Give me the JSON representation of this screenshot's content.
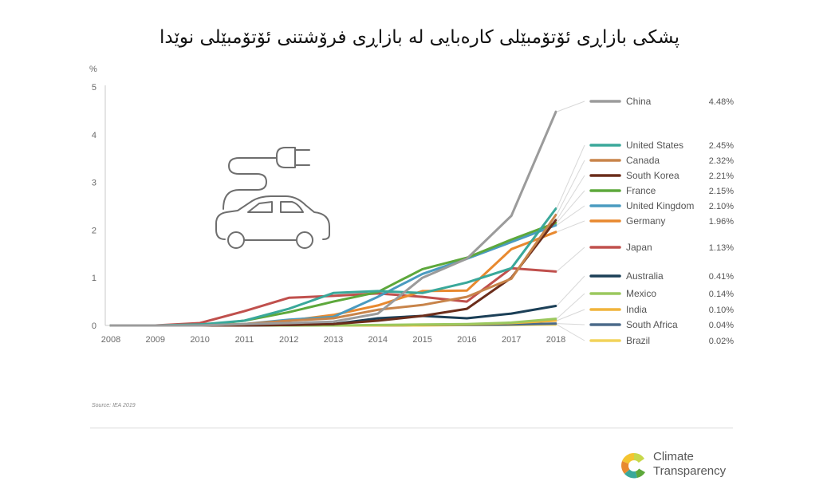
{
  "title": "پشکی بازاڕی ئۆتۆمبێلی کارەبایی لە بازاڕی فرۆشتنی ئۆتۆمبێلی نوێدا",
  "source": "Source: IEA 2019",
  "brand": {
    "line1": "Climate",
    "line2": "Transparency"
  },
  "chart_data": {
    "type": "line",
    "ylabel": "%",
    "ylim": [
      0,
      5
    ],
    "yticks": [
      "0",
      "1",
      "2",
      "3",
      "4",
      "5"
    ],
    "x": [
      "2008",
      "2009",
      "2010",
      "2011",
      "2012",
      "2013",
      "2014",
      "2015",
      "2016",
      "2017",
      "2018"
    ],
    "grid": false,
    "legend": "right",
    "series": [
      {
        "name": "China",
        "label": "4.48%",
        "color": "#9b9b9b",
        "values": [
          0,
          0,
          0,
          0.03,
          0.05,
          0.08,
          0.25,
          1.0,
          1.4,
          2.3,
          4.48
        ]
      },
      {
        "name": "United States",
        "label": "2.45%",
        "color": "#3aa89a",
        "values": [
          0,
          0,
          0.02,
          0.1,
          0.35,
          0.68,
          0.72,
          0.68,
          0.9,
          1.2,
          2.45
        ]
      },
      {
        "name": "Canada",
        "label": "2.32%",
        "color": "#c8844a",
        "values": [
          0,
          0,
          0,
          0.03,
          0.1,
          0.15,
          0.33,
          0.43,
          0.6,
          0.98,
          2.32
        ]
      },
      {
        "name": "South Korea",
        "label": "2.21%",
        "color": "#6b2d1b",
        "values": [
          0,
          0,
          0,
          0,
          0.01,
          0.03,
          0.1,
          0.2,
          0.35,
          1.0,
          2.21
        ]
      },
      {
        "name": "France",
        "label": "2.15%",
        "color": "#5da83b",
        "values": [
          0,
          0,
          0,
          0.1,
          0.28,
          0.5,
          0.7,
          1.18,
          1.42,
          1.8,
          2.15
        ]
      },
      {
        "name": "United Kingdom",
        "label": "2.10%",
        "color": "#4a9bc0",
        "values": [
          0,
          0,
          0,
          0.03,
          0.12,
          0.18,
          0.6,
          1.08,
          1.4,
          1.75,
          2.1
        ]
      },
      {
        "name": "Germany",
        "label": "1.96%",
        "color": "#e8892f",
        "values": [
          0,
          0,
          0,
          0.02,
          0.1,
          0.22,
          0.42,
          0.72,
          0.73,
          1.6,
          1.96
        ]
      },
      {
        "name": "Japan",
        "label": "1.13%",
        "color": "#c0504d",
        "values": [
          0,
          0,
          0.05,
          0.3,
          0.58,
          0.62,
          0.67,
          0.6,
          0.5,
          1.2,
          1.13
        ]
      },
      {
        "name": "Australia",
        "label": "0.41%",
        "color": "#1b3f57",
        "values": [
          0,
          0,
          0,
          0,
          0.01,
          0.03,
          0.15,
          0.2,
          0.15,
          0.25,
          0.41
        ]
      },
      {
        "name": "Mexico",
        "label": "0.14%",
        "color": "#9bc85e",
        "values": [
          0,
          0,
          0,
          0,
          0,
          0,
          0.01,
          0.02,
          0.03,
          0.06,
          0.14
        ]
      },
      {
        "name": "India",
        "label": "0.10%",
        "color": "#f0b43c",
        "values": [
          0,
          0,
          0,
          0,
          0,
          0,
          0,
          0.01,
          0.02,
          0.05,
          0.1
        ]
      },
      {
        "name": "South Africa",
        "label": "0.04%",
        "color": "#4b6a8a",
        "values": [
          0,
          0,
          0,
          0,
          0,
          0,
          0,
          0.01,
          0.01,
          0.02,
          0.04
        ]
      },
      {
        "name": "Brazil",
        "label": "0.02%",
        "color": "#f2d35a",
        "values": [
          0,
          0,
          0,
          0,
          0,
          0,
          0,
          0,
          0.01,
          0.01,
          0.02
        ]
      }
    ]
  }
}
